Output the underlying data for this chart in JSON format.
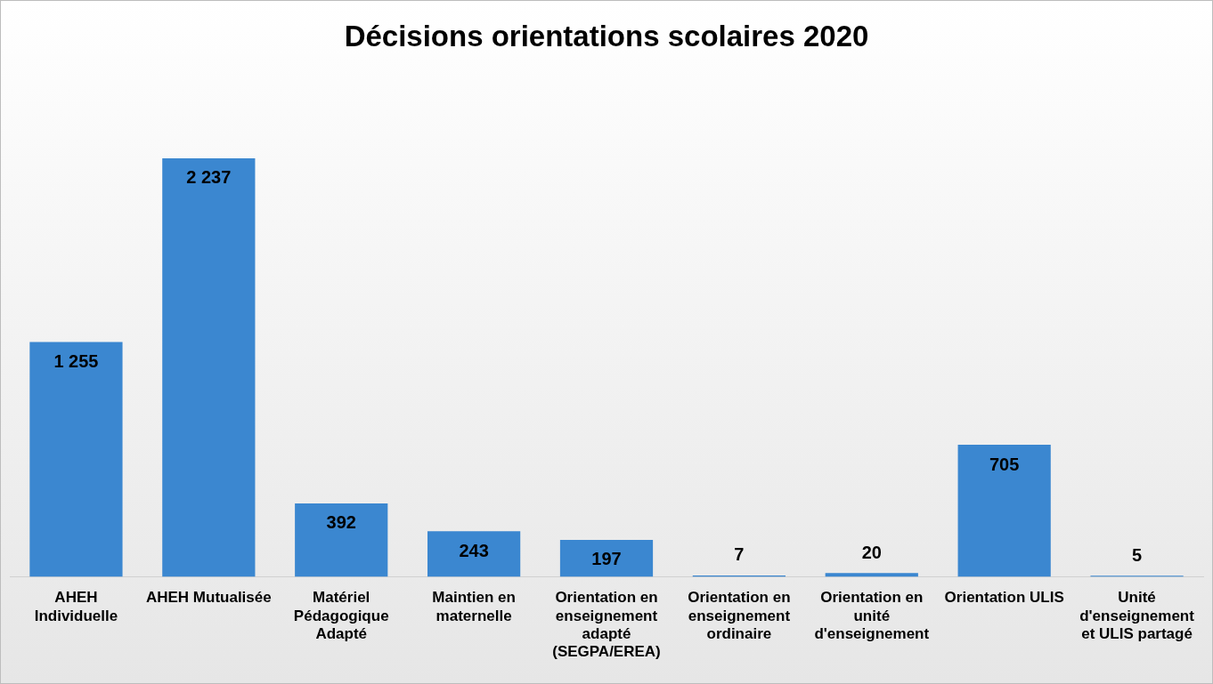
{
  "chart_data": {
    "type": "bar",
    "title": "Décisions orientations scolaires 2020",
    "categories": [
      "AHEH Individuelle",
      "AHEH Mutualisée",
      "Matériel Pédagogique Adapté",
      "Maintien en maternelle",
      "Orientation en enseignement adapté (SEGPA/EREA)",
      "Orientation en enseignement ordinaire",
      "Orientation en unité d'enseignement",
      "Orientation ULIS",
      "Unité d'enseignement et ULIS partagé"
    ],
    "values": [
      1255,
      2237,
      392,
      243,
      197,
      7,
      20,
      705,
      5
    ],
    "value_labels": [
      "1 255",
      "2 237",
      "392",
      "243",
      "197",
      "7",
      "20",
      "705",
      "5"
    ],
    "color": "#3b87d0",
    "grid": false,
    "legend": false
  }
}
